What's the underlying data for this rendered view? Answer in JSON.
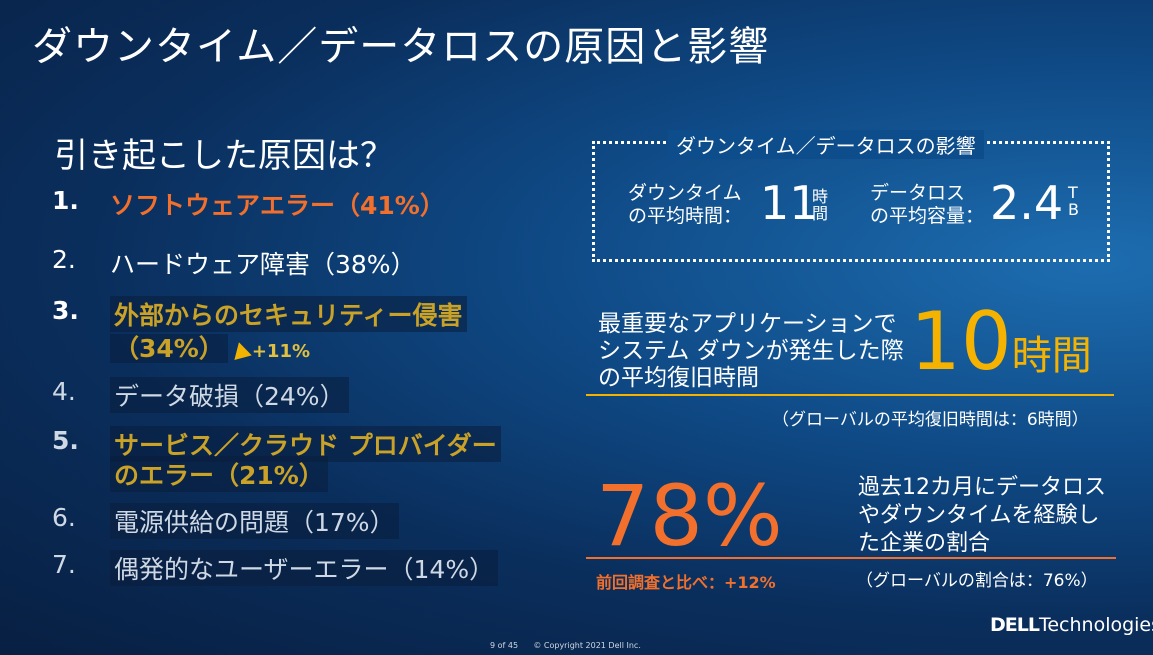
{
  "slide": {
    "title": "ダウンタイム／データロスの原因と影響",
    "causes_heading": "引き起こした原因は？",
    "causes": [
      {
        "num": "1.",
        "label": "ソフトウェアエラー（41%）"
      },
      {
        "num": "2.",
        "label": "ハードウェア障害（38%）"
      },
      {
        "num": "3.",
        "label": "外部からのセキュリティー侵害",
        "label2": "（34%）",
        "delta": "+11%"
      },
      {
        "num": "4.",
        "label": "データ破損（24%）"
      },
      {
        "num": "5.",
        "label": "サービス／クラウド プロバイダー",
        "label2": "のエラー（21%）"
      },
      {
        "num": "6.",
        "label": "電源供給の問題（17%）"
      },
      {
        "num": "7.",
        "label": "偶発的なユーザーエラー（14%）"
      }
    ],
    "impact": {
      "title": "ダウンタイム／データロスの影響",
      "downtime_label_1": "ダウンタイム",
      "downtime_label_2": "の平均時間：",
      "downtime_value": "11",
      "downtime_unit_1": "時",
      "downtime_unit_2": "間",
      "dataloss_label_1": "データロス",
      "dataloss_label_2": "の平均容量：",
      "dataloss_value": "2.4",
      "dataloss_unit_1": "T",
      "dataloss_unit_2": "B"
    },
    "critical": {
      "line1": "最重要なアプリケーションで",
      "line2": "システム ダウンが発生した際",
      "line3": "の平均復旧時間",
      "value": "10",
      "unit": "時間",
      "global": "（グローバルの平均復旧時間は：6時間）"
    },
    "experience": {
      "value": "78%",
      "line1": "過去12カ月にデータロス",
      "line2": "やダウンタイムを経験し",
      "line3": "た企業の割合",
      "prev": "前回調査と比べ：+12%",
      "global": "（グローバルの割合は：76%）"
    },
    "footer": {
      "page": "9 of 45",
      "copyright": "© Copyright 2021 Dell Inc."
    },
    "logo": {
      "brand": "DELL",
      "suffix": "Technologies"
    }
  }
}
